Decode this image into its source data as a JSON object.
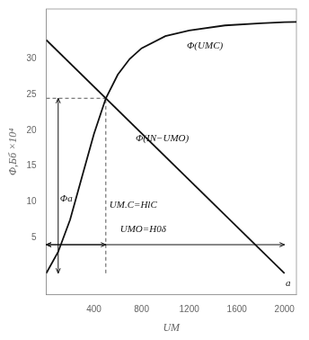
{
  "chart_data": {
    "type": "line",
    "color": "#111111",
    "xlabel": "UM",
    "ylabel": "Φ,Бб ×10⁴",
    "xlim": [
      0,
      2100
    ],
    "ylim": [
      -3,
      37
    ],
    "xticks": [
      400,
      800,
      1200,
      1600,
      2000
    ],
    "yticks": [
      5,
      10,
      15,
      20,
      25,
      30
    ],
    "grid": false,
    "series": [
      {
        "x": [
          0,
          100,
          200,
          300,
          400,
          500,
          600,
          700,
          800,
          1000,
          1200,
          1500,
          1800,
          2000,
          2100
        ],
        "values": [
          0,
          3,
          7.5,
          13.5,
          19.5,
          24.5,
          27.8,
          30.0,
          31.5,
          33.2,
          34.0,
          34.7,
          35.0,
          35.15,
          35.2
        ],
        "color": "#111111",
        "line_style": "solid"
      },
      {
        "x": [
          0,
          2000
        ],
        "values": [
          32.67,
          0.0
        ],
        "color": "#111111",
        "line_style": "solid"
      },
      {
        "x": [
          500,
          500
        ],
        "values": [
          0,
          24.5
        ],
        "color": "#555555",
        "line_style": "dashed"
      },
      {
        "x": [
          0,
          500
        ],
        "values": [
          24.5,
          24.5
        ],
        "color": "#555555",
        "line_style": "dashed"
      }
    ],
    "arrows": [
      {
        "x": [
          0,
          2000
        ],
        "y": [
          4.0,
          4.0
        ]
      },
      {
        "x": [
          0,
          500
        ],
        "y": [
          4.0,
          4.0
        ]
      },
      {
        "x": [
          100,
          100
        ],
        "y": [
          24.5,
          0
        ]
      }
    ],
    "annotations": [
      {
        "text": "Φ(UMC)",
        "x": 1180,
        "y": 31.5
      },
      {
        "text": "Φ(IN−UMO)",
        "x": 750,
        "y": 18.5
      },
      {
        "text": "UM.C=HlC",
        "x": 530,
        "y": 9.2
      },
      {
        "text": "UMO=H0δ",
        "x": 620,
        "y": 5.8
      },
      {
        "text": "Φa",
        "x": 115,
        "y": 10
      },
      {
        "text": "a",
        "x": 2010,
        "y": -1.8
      }
    ]
  }
}
